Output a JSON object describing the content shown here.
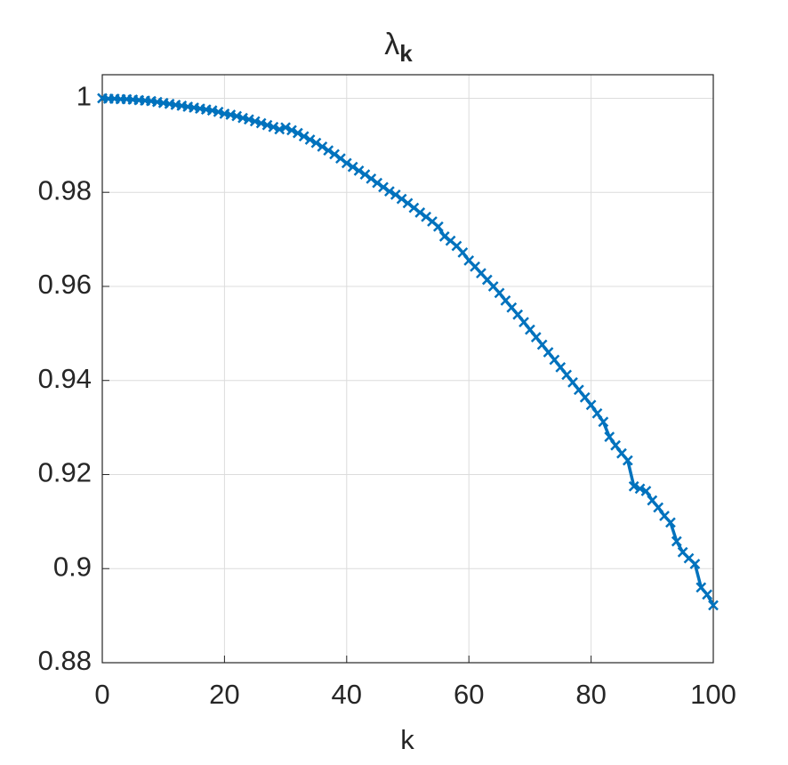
{
  "chart_data": {
    "type": "line",
    "title": "λ",
    "title_subscript": "k",
    "xlabel": "k",
    "x": [
      0,
      1,
      2,
      3,
      4,
      5,
      6,
      7,
      8,
      9,
      10,
      11,
      12,
      13,
      14,
      15,
      16,
      17,
      18,
      19,
      20,
      21,
      22,
      23,
      24,
      25,
      26,
      27,
      28,
      29,
      30,
      31,
      32,
      33,
      34,
      35,
      36,
      37,
      38,
      39,
      40,
      41,
      42,
      43,
      44,
      45,
      46,
      47,
      48,
      49,
      50,
      51,
      52,
      53,
      54,
      55,
      56,
      57,
      58,
      59,
      60,
      61,
      62,
      63,
      64,
      65,
      66,
      67,
      68,
      69,
      70,
      71,
      72,
      73,
      74,
      75,
      76,
      77,
      78,
      79,
      80,
      81,
      82,
      83,
      84,
      85,
      86,
      87,
      88,
      89,
      90,
      91,
      92,
      93,
      94,
      95,
      96,
      97,
      98,
      99,
      100
    ],
    "series": [
      {
        "color": "#0072bd",
        "values": [
          1.0,
          0.9999,
          0.9999,
          0.9998,
          0.9998,
          0.9997,
          0.9996,
          0.9995,
          0.9994,
          0.9992,
          0.999,
          0.9988,
          0.9986,
          0.9984,
          0.9982,
          0.998,
          0.9978,
          0.9976,
          0.9974,
          0.9971,
          0.9967,
          0.9965,
          0.9962,
          0.9958,
          0.9955,
          0.9951,
          0.9947,
          0.9943,
          0.9939,
          0.9934,
          0.9938,
          0.9932,
          0.9926,
          0.9919,
          0.9912,
          0.9905,
          0.9897,
          0.9889,
          0.9881,
          0.9872,
          0.9862,
          0.9854,
          0.9846,
          0.9838,
          0.9829,
          0.982,
          0.9811,
          0.9802,
          0.9795,
          0.9786,
          0.9777,
          0.9767,
          0.9757,
          0.9748,
          0.9738,
          0.9727,
          0.9706,
          0.9697,
          0.9686,
          0.9672,
          0.9655,
          0.9642,
          0.9628,
          0.9614,
          0.96,
          0.9586,
          0.957,
          0.9555,
          0.954,
          0.9524,
          0.9508,
          0.9492,
          0.9476,
          0.946,
          0.9444,
          0.9428,
          0.9412,
          0.9396,
          0.938,
          0.9364,
          0.9348,
          0.933,
          0.9312,
          0.928,
          0.9262,
          0.9245,
          0.923,
          0.9175,
          0.917,
          0.9165,
          0.9145,
          0.913,
          0.9112,
          0.9098,
          0.9058,
          0.9035,
          0.9022,
          0.901,
          0.896,
          0.8945,
          0.8922
        ]
      }
    ],
    "xlim": [
      0,
      100
    ],
    "xticks": [
      0,
      20,
      40,
      60,
      80,
      100
    ],
    "ylim": [
      0.88,
      1.005
    ],
    "yticks": [
      0.88,
      0.9,
      0.92,
      0.94,
      0.96,
      0.98,
      1
    ],
    "grid": true,
    "marker": "x"
  }
}
